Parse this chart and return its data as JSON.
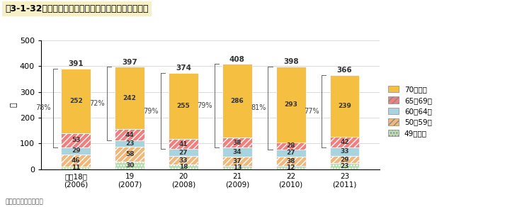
{
  "title": "図3-1-32　年齢別農作業中の死亡事故発生件数の推移",
  "ylabel": "件",
  "source": "資料：農林水産省調べ",
  "years": [
    "平成18年\n(2006)",
    "19\n(2007)",
    "20\n(2008)",
    "21\n(2009)",
    "22\n(2010)",
    "23\n(2011)"
  ],
  "categories": [
    "49歳以下",
    "50〜59歳",
    "60〜64歳",
    "65〜69歳",
    "70歳以上"
  ],
  "data": {
    "49歳以下": [
      11,
      30,
      18,
      13,
      12,
      23
    ],
    "50〜59歳": [
      46,
      58,
      33,
      37,
      38,
      29
    ],
    "60〜64歳": [
      29,
      23,
      27,
      34,
      27,
      33
    ],
    "65〜69歳": [
      53,
      44,
      41,
      38,
      28,
      42
    ],
    "70歳以上": [
      252,
      242,
      255,
      286,
      293,
      239
    ]
  },
  "totals": [
    391,
    397,
    374,
    408,
    398,
    366
  ],
  "pct_between": [
    "72%",
    "79%",
    "79%",
    "81%",
    "77%"
  ],
  "pct_left": "78%",
  "ylim": [
    0,
    500
  ],
  "yticks": [
    0,
    100,
    200,
    300,
    400,
    500
  ],
  "bar_width": 0.55,
  "colors": [
    "#b8ddb0",
    "#f0b87a",
    "#a8d4e0",
    "#f08080",
    "#f5c042"
  ],
  "hatches": [
    "....",
    "////",
    "",
    "////",
    "====="
  ],
  "legend_labels": [
    "70歳以上",
    "65～69歳",
    "60～64歳",
    "50～59歳",
    "49歳以下"
  ]
}
